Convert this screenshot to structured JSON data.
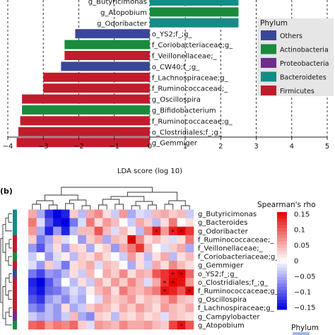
{
  "chart_data": [
    {
      "type": "bar",
      "orientation": "horizontal",
      "xlabel": "LDA score (log 10)",
      "xlim": [
        -4,
        5
      ],
      "ticks": [
        -4,
        -3,
        -2,
        -1,
        0,
        1,
        2,
        3,
        4,
        5
      ],
      "grid": "dashed vertical lines at ticks",
      "bars": [
        {
          "label": "g_Butyricimonas",
          "value": 2.5,
          "phylum": "Bacteroidetes"
        },
        {
          "label": "g_Atopobium",
          "value": 2.5,
          "phylum": "Actinobacteria"
        },
        {
          "label": "g_Odoribacter",
          "value": 2.5,
          "phylum": "Bacteroidetes"
        },
        {
          "label": "o_YS2;f_;g_",
          "value": -2.1,
          "phylum": "Others"
        },
        {
          "label": "f_Coriobacteriaceae;g_",
          "value": -2.4,
          "phylum": "Actinobacteria"
        },
        {
          "label": "f_Veillonellaceae;_",
          "value": -2.4,
          "phylum": "Firmicutes"
        },
        {
          "label": "o_CW40;f_;g_",
          "value": -2.5,
          "phylum": "Others"
        },
        {
          "label": "f_Lachnospiraceae;g_",
          "value": -3.0,
          "phylum": "Firmicutes"
        },
        {
          "label": "f_Ruminococcaceae;_",
          "value": -3.0,
          "phylum": "Firmicutes"
        },
        {
          "label": "g_Oscillospira",
          "value": -3.6,
          "phylum": "Firmicutes"
        },
        {
          "label": "g_Bifidobacterium",
          "value": -3.6,
          "phylum": "Actinobacteria"
        },
        {
          "label": "f_Ruminococcaceae;g_",
          "value": -3.65,
          "phylum": "Firmicutes"
        },
        {
          "label": "o_Clostridiales;f_;g_",
          "value": -3.7,
          "phylum": "Firmicutes"
        },
        {
          "label": "g_Gemmiger",
          "value": -3.75,
          "phylum": "Firmicutes"
        }
      ],
      "legend": {
        "title": "Phylum",
        "placement": "right",
        "entries": [
          {
            "name": "Others",
            "color": "#3a4699"
          },
          {
            "name": "Actinobacteria",
            "color": "#1a8a3c"
          },
          {
            "name": "Proteobacteria",
            "color": "#6e2d8f"
          },
          {
            "name": "Bacteroidetes",
            "color": "#148c86"
          },
          {
            "name": "Firmicutes",
            "color": "#c01c2c"
          }
        ]
      }
    },
    {
      "type": "heatmap",
      "panel_label": "(b)",
      "rows": [
        "g_Butyricimonas",
        "g_Bacteroides",
        "g_Odoribacter",
        "f_Ruminococcaceae;_",
        "f_Veillonellaceae;_",
        "f_Coriobacteriaceae;g_",
        "g_Gemmiger",
        "o_YS2;f_;g_",
        "o_Clostridiales;f_;g_",
        "f_Ruminococcaceae;g_",
        "g_Oscillospira",
        "f_Lachnospiraceae;g_",
        "g_Campylobacter",
        "g_Atopobium"
      ],
      "colorbar": {
        "title": "Spearman's rho",
        "ticks": [
          "0.15",
          "0.1",
          "0.05",
          "0",
          "−0.05",
          "−0.1",
          "−0.15"
        ],
        "range": [
          -0.15,
          0.15
        ]
      },
      "matrix": [
        [
          0.05,
          -0.05,
          -0.12,
          -0.15,
          -0.13,
          0.03,
          -0.04,
          0.05,
          0.07,
          0.02,
          -0.03,
          0.06,
          -0.05,
          -0.02,
          -0.03,
          0.04,
          0.05,
          0.03,
          0.04,
          -0.03
        ],
        [
          0.08,
          -0.02,
          -0.1,
          -0.14,
          -0.15,
          -0.08,
          -0.02,
          0.08,
          0.02,
          0.06,
          0.04,
          0.0,
          -0.03,
          0.05,
          0.03,
          -0.04,
          0.02,
          0.08,
          0.0,
          0.02
        ],
        [
          0.06,
          -0.05,
          -0.13,
          -0.06,
          -0.13,
          -0.04,
          0.04,
          0.04,
          0.1,
          0.04,
          -0.02,
          0.04,
          0.01,
          -0.04,
          0.07,
          0.14,
          0.06,
          0.13,
          0.15,
          0.12
        ],
        [
          0.03,
          -0.08,
          -0.05,
          0.03,
          -0.02,
          0.0,
          -0.06,
          0.03,
          0.05,
          -0.05,
          0.04,
          0.03,
          0.15,
          0.07,
          0.02,
          0.04,
          0.02,
          -0.02,
          0.02,
          0.08
        ],
        [
          -0.06,
          -0.1,
          -0.04,
          0.02,
          -0.06,
          0.03,
          0.02,
          -0.05,
          0.01,
          0.03,
          -0.06,
          0.05,
          0.08,
          0.12,
          0.04,
          0.0,
          -0.02,
          0.03,
          0.05,
          -0.05
        ],
        [
          -0.03,
          0.0,
          -0.06,
          -0.02,
          0.01,
          -0.04,
          0.03,
          0.02,
          0.05,
          0.02,
          0.0,
          -0.03,
          0.06,
          0.02,
          -0.04,
          0.02,
          0.05,
          -0.04,
          0.02,
          0.04
        ],
        [
          -0.02,
          -0.06,
          0.03,
          -0.03,
          -0.08,
          0.02,
          0.03,
          0.05,
          -0.02,
          0.04,
          0.03,
          0.0,
          -0.05,
          0.02,
          -0.03,
          0.05,
          0.02,
          0.07,
          0.04,
          0.02
        ],
        [
          -0.08,
          -0.11,
          -0.06,
          -0.07,
          -0.04,
          0.02,
          -0.03,
          0.04,
          0.0,
          0.05,
          0.03,
          0.07,
          0.02,
          0.05,
          0.04,
          0.1,
          0.12,
          0.14,
          0.15,
          0.09
        ],
        [
          -0.13,
          -0.15,
          -0.1,
          -0.06,
          0.0,
          -0.04,
          0.02,
          -0.03,
          0.05,
          0.02,
          0.06,
          0.03,
          0.07,
          0.04,
          -0.02,
          0.05,
          0.12,
          0.15,
          0.14,
          0.06
        ],
        [
          -0.12,
          -0.14,
          -0.09,
          -0.08,
          -0.05,
          -0.02,
          -0.04,
          0.01,
          0.04,
          0.06,
          0.02,
          0.08,
          0.05,
          0.04,
          0.06,
          0.08,
          0.14,
          0.13,
          0.1,
          0.15
        ],
        [
          -0.1,
          -0.12,
          -0.06,
          -0.04,
          -0.07,
          -0.03,
          -0.05,
          0.0,
          -0.02,
          0.05,
          0.03,
          0.04,
          0.06,
          0.02,
          0.04,
          0.03,
          0.05,
          0.08,
          0.04,
          0.03
        ],
        [
          -0.07,
          -0.09,
          -0.04,
          -0.06,
          0.02,
          -0.05,
          -0.03,
          0.03,
          0.05,
          0.04,
          0.02,
          0.05,
          0.03,
          0.06,
          0.04,
          0.02,
          0.06,
          0.04,
          0.03,
          0.05
        ],
        [
          -0.03,
          -0.05,
          -0.04,
          -0.06,
          -0.03,
          0.04,
          -0.05,
          -0.07,
          0.03,
          0.02,
          -0.04,
          0.03,
          0.02,
          0.04,
          0.02,
          0.03,
          -0.02,
          0.04,
          0.03,
          0.02
        ],
        [
          0.09,
          0.1,
          0.06,
          0.08,
          0.07,
          0.09,
          0.03,
          -0.02,
          0.06,
          0.05,
          0.04,
          0.07,
          0.05,
          0.05,
          0.06,
          0.04,
          0.03,
          0.11,
          0.14,
          0.1
        ]
      ],
      "significance_marks": [
        [
          2,
          15
        ],
        [
          2,
          17
        ],
        [
          2,
          18
        ],
        [
          3,
          12
        ],
        [
          7,
          17
        ],
        [
          7,
          18
        ],
        [
          8,
          16
        ],
        [
          8,
          17
        ],
        [
          9,
          16
        ],
        [
          9,
          19
        ],
        [
          13,
          18
        ]
      ],
      "phylum_legend_title": "Phylum"
    }
  ]
}
